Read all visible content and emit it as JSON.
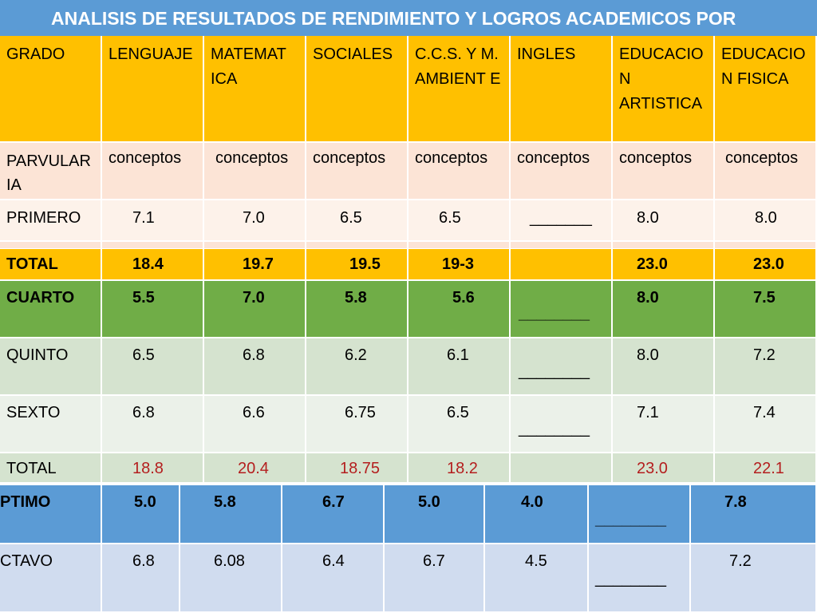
{
  "title": "ANALISIS DE RESULTADOS DE RENDIMIENTO Y LOGROS ACADEMICOS POR",
  "headers": [
    "GRADO",
    "LENGUAJE",
    "MATEMAT ICA",
    "SOCIALES",
    "C.C.S. Y M. AMBIENT E",
    "INGLES",
    "EDUCACIO N ARTISTICA",
    "EDUCACIO N FISICA"
  ],
  "rows": {
    "parvularia": [
      "PARVULAR IA",
      "conceptos",
      "conceptos",
      "conceptos",
      "conceptos",
      "conceptos",
      "conceptos",
      "conceptos"
    ],
    "primero": [
      "PRIMERO",
      "7.1",
      "7.0",
      "6.5",
      "6.5",
      "_______",
      "8.0",
      "8.0"
    ],
    "total1": [
      "TOTAL",
      "18.4",
      "19.7",
      "19.5",
      "19-3",
      "",
      "23.0",
      "23.0"
    ],
    "cuarto": [
      "CUARTO",
      "5.5",
      "7.0",
      "5.8",
      "5.6",
      "________",
      "8.0",
      "7.5"
    ],
    "quinto": [
      "QUINTO",
      "6.5",
      "6.8",
      "6.2",
      "6.1",
      "________",
      "8.0",
      "7.2"
    ],
    "sexto": [
      "SEXTO",
      "6.8",
      "6.6",
      "6.75",
      "6.5",
      "________",
      "7.1",
      "7.4"
    ],
    "total2": [
      "TOTAL",
      "18.8",
      "20.4",
      "18.75",
      "18.2",
      "",
      "23.0",
      "22.1"
    ],
    "septimo": [
      "PTIMO",
      "5.0",
      "5.8",
      "6.7",
      "5.0",
      "4.0",
      "________",
      "7.8"
    ],
    "octavo": [
      "CTAVO",
      "6.8",
      "6.08",
      "6.4",
      "6.7",
      "4.5",
      "________",
      "7.2"
    ]
  },
  "colors": {
    "title_bg": "#5b9bd5",
    "header_bg": "#ffc000",
    "cuarto_bg": "#70ad47",
    "total_red_text": "#b41e1e"
  }
}
